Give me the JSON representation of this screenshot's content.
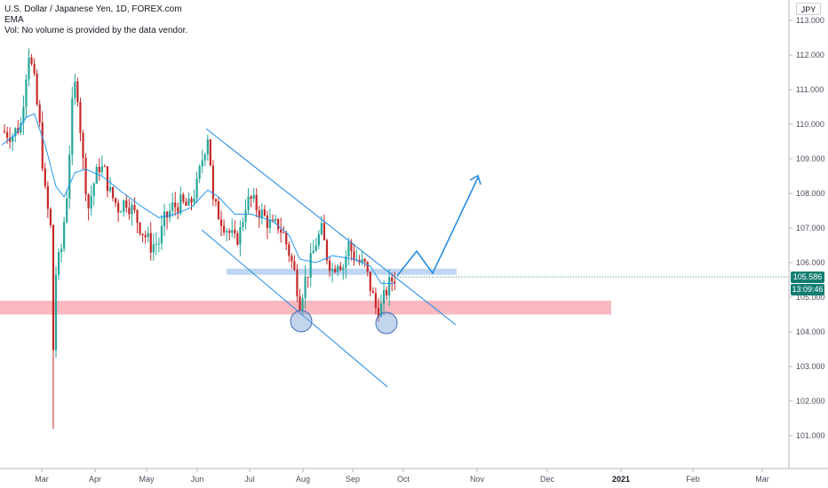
{
  "legend": {
    "symbol": "U.S. Dollar / Japanese Yen, 1D, FOREX.com",
    "indicator": "EMA",
    "volume_note": "Vol: No volume is provided by the data vendor."
  },
  "currency_button": "JPY",
  "colors": {
    "up": "#26a69a",
    "down": "#c62828",
    "ema": "#2196f3",
    "trend": "#1e88e5",
    "support_zone": "#f7a1a9",
    "resistance_zone": "#a9c8ee",
    "price_tag": "#127d6f",
    "timer_tag": "#127d6f"
  },
  "price_tags": {
    "last_price": "105.586",
    "countdown": "13:09:46"
  },
  "chart_data": {
    "type": "candlestick",
    "title": "U.S. Dollar / Japanese Yen, 1D, FOREX.com",
    "y_axis": {
      "ticks": [
        "113.000",
        "112.000",
        "111.000",
        "110.000",
        "109.000",
        "108.000",
        "107.000",
        "106.000",
        "105.000",
        "104.000",
        "103.000",
        "102.000",
        "101.000"
      ],
      "ylim": [
        100.2,
        113.5
      ]
    },
    "x_axis": {
      "ticks": [
        "Mar",
        "Apr",
        "May",
        "Jun",
        "Jul",
        "Aug",
        "Sep",
        "Oct",
        "Nov",
        "Dec",
        "2021",
        "Feb",
        "Mar"
      ],
      "bold_ticks": [
        "2021"
      ]
    },
    "ohlc_keyframes": [
      {
        "d": 0,
        "c": 109.8
      },
      {
        "d": 4,
        "c": 109.7
      },
      {
        "d": 7,
        "c": 110.0
      },
      {
        "d": 9,
        "c": 111.5
      },
      {
        "d": 10,
        "c": 112.1
      },
      {
        "d": 12,
        "c": 111.2
      },
      {
        "d": 14,
        "c": 109.9
      },
      {
        "d": 16,
        "c": 108.0
      },
      {
        "d": 18,
        "c": 107.0
      },
      {
        "d": 19,
        "c": 103.5
      },
      {
        "d": 20,
        "c": 105.7
      },
      {
        "d": 22,
        "c": 106.4
      },
      {
        "d": 24,
        "c": 108.0
      },
      {
        "d": 26,
        "c": 110.5
      },
      {
        "d": 27,
        "c": 111.1
      },
      {
        "d": 28,
        "c": 110.9
      },
      {
        "d": 30,
        "c": 108.9
      },
      {
        "d": 32,
        "c": 107.6
      },
      {
        "d": 34,
        "c": 108.3
      },
      {
        "d": 36,
        "c": 108.8
      },
      {
        "d": 38,
        "c": 108.6
      },
      {
        "d": 40,
        "c": 108.0
      },
      {
        "d": 43,
        "c": 107.6
      },
      {
        "d": 46,
        "c": 107.8
      },
      {
        "d": 49,
        "c": 107.4
      },
      {
        "d": 52,
        "c": 106.9
      },
      {
        "d": 55,
        "c": 106.5
      },
      {
        "d": 58,
        "c": 106.6
      },
      {
        "d": 60,
        "c": 107.2
      },
      {
        "d": 63,
        "c": 107.6
      },
      {
        "d": 66,
        "c": 107.7
      },
      {
        "d": 69,
        "c": 107.6
      },
      {
        "d": 72,
        "c": 108.2
      },
      {
        "d": 74,
        "c": 109.0
      },
      {
        "d": 76,
        "c": 109.7
      },
      {
        "d": 77,
        "c": 108.9
      },
      {
        "d": 78,
        "c": 107.7
      },
      {
        "d": 80,
        "c": 107.4
      },
      {
        "d": 83,
        "c": 107.0
      },
      {
        "d": 86,
        "c": 106.6
      },
      {
        "d": 88,
        "c": 106.9
      },
      {
        "d": 90,
        "c": 107.7
      },
      {
        "d": 92,
        "c": 107.8
      },
      {
        "d": 95,
        "c": 107.5
      },
      {
        "d": 98,
        "c": 107.2
      },
      {
        "d": 100,
        "c": 107.0
      },
      {
        "d": 102,
        "c": 107.1
      },
      {
        "d": 104,
        "c": 106.8
      },
      {
        "d": 106,
        "c": 106.3
      },
      {
        "d": 108,
        "c": 105.7
      },
      {
        "d": 110,
        "c": 104.9
      },
      {
        "d": 112,
        "c": 105.5
      },
      {
        "d": 114,
        "c": 106.0
      },
      {
        "d": 116,
        "c": 106.6
      },
      {
        "d": 118,
        "c": 106.9
      },
      {
        "d": 120,
        "c": 106.2
      },
      {
        "d": 122,
        "c": 105.8
      },
      {
        "d": 124,
        "c": 106.1
      },
      {
        "d": 126,
        "c": 105.9
      },
      {
        "d": 128,
        "c": 106.5
      },
      {
        "d": 130,
        "c": 106.2
      },
      {
        "d": 132,
        "c": 106.0
      },
      {
        "d": 134,
        "c": 105.9
      },
      {
        "d": 136,
        "c": 105.3
      },
      {
        "d": 138,
        "c": 104.7
      },
      {
        "d": 140,
        "c": 104.7
      },
      {
        "d": 142,
        "c": 105.2
      },
      {
        "d": 144,
        "c": 105.5
      },
      {
        "d": 145,
        "c": 105.586
      }
    ],
    "ema_keyframes": [
      {
        "d": 0,
        "v": 109.4
      },
      {
        "d": 5,
        "v": 109.7
      },
      {
        "d": 9,
        "v": 110.2
      },
      {
        "d": 12,
        "v": 110.3
      },
      {
        "d": 16,
        "v": 109.4
      },
      {
        "d": 20,
        "v": 108.2
      },
      {
        "d": 23,
        "v": 107.9
      },
      {
        "d": 27,
        "v": 108.6
      },
      {
        "d": 31,
        "v": 108.7
      },
      {
        "d": 37,
        "v": 108.5
      },
      {
        "d": 45,
        "v": 108.0
      },
      {
        "d": 52,
        "v": 107.6
      },
      {
        "d": 58,
        "v": 107.3
      },
      {
        "d": 64,
        "v": 107.4
      },
      {
        "d": 70,
        "v": 107.6
      },
      {
        "d": 76,
        "v": 108.1
      },
      {
        "d": 80,
        "v": 107.9
      },
      {
        "d": 86,
        "v": 107.4
      },
      {
        "d": 92,
        "v": 107.4
      },
      {
        "d": 100,
        "v": 107.2
      },
      {
        "d": 106,
        "v": 106.8
      },
      {
        "d": 110,
        "v": 106.1
      },
      {
        "d": 116,
        "v": 106.0
      },
      {
        "d": 122,
        "v": 106.2
      },
      {
        "d": 130,
        "v": 106.1
      },
      {
        "d": 136,
        "v": 105.9
      },
      {
        "d": 140,
        "v": 105.4
      },
      {
        "d": 145,
        "v": 105.4
      }
    ],
    "support_zone": [
      104.5,
      104.9
    ],
    "resistance_line": 105.75,
    "last_price": 105.586
  }
}
